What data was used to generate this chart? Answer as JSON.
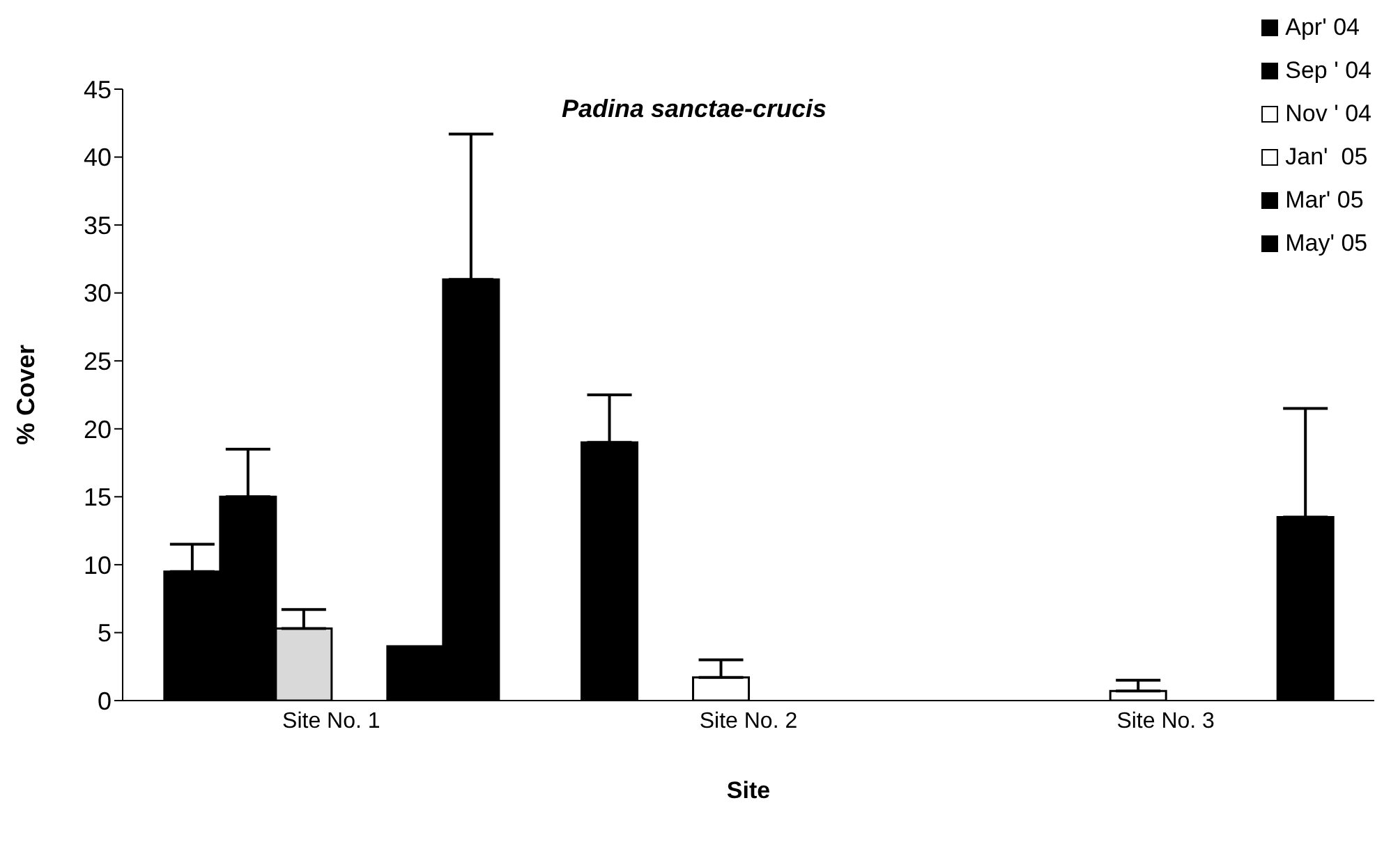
{
  "chart_data": {
    "type": "bar",
    "title": "Padina sanctae-crucis",
    "xlabel": "Site",
    "ylabel": "% Cover",
    "categories": [
      "Site No. 1",
      "Site No. 2",
      "Site No. 3"
    ],
    "series": [
      {
        "name": "Apr' 04",
        "color": "#000000",
        "values": [
          9.5,
          19,
          0
        ],
        "errors": [
          [
            9.5,
            11.5
          ],
          [
            19,
            22.5
          ],
          null
        ]
      },
      {
        "name": "Sep ' 04",
        "color": "#000000",
        "values": [
          15,
          0,
          0
        ],
        "errors": [
          [
            15,
            18.5
          ],
          null,
          null
        ]
      },
      {
        "name": "Nov ' 04",
        "color": "#ffffff",
        "colors": [
          "#d9d9d9",
          "#ffffff",
          "#ffffff"
        ],
        "values": [
          5.3,
          1.7,
          0.7
        ],
        "errors": [
          [
            5.3,
            6.7
          ],
          [
            1.7,
            3
          ],
          [
            0.7,
            1.5
          ]
        ]
      },
      {
        "name": "Jan'  05",
        "color": "#ffffff",
        "values": [
          0,
          0,
          0
        ]
      },
      {
        "name": "Mar' 05",
        "color": "#000000",
        "values": [
          4,
          0,
          0
        ]
      },
      {
        "name": "May' 05",
        "color": "#000000",
        "values": [
          31,
          0,
          13.5
        ],
        "errors": [
          [
            31,
            41.7
          ],
          null,
          [
            13.5,
            21.5
          ]
        ]
      }
    ],
    "ylim": [
      0,
      45
    ],
    "yticks": [
      0,
      5,
      10,
      15,
      20,
      25,
      30,
      35,
      40,
      45
    ],
    "grid": false,
    "legend": "top right"
  }
}
